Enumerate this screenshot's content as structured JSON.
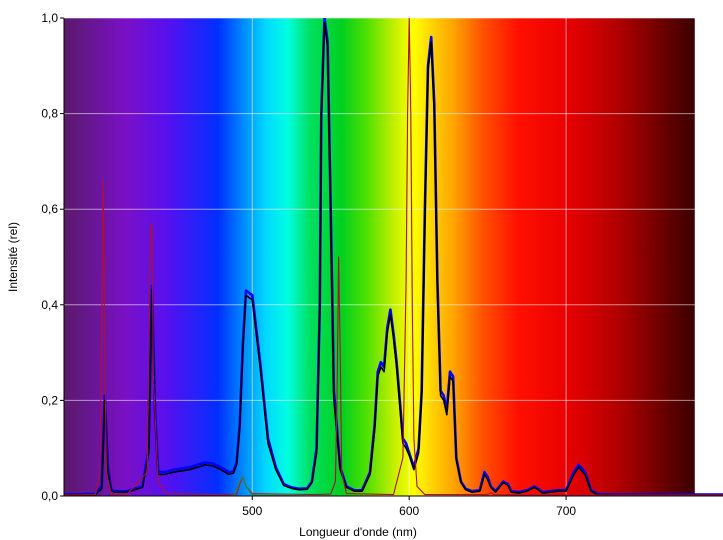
{
  "chart_data": {
    "type": "line",
    "title": "",
    "xlabel": "Longueur d'onde (nm)",
    "ylabel": "Intensité (rel)",
    "xlim": [
      380,
      1000
    ],
    "ylim": [
      0,
      1.0
    ],
    "x_ticks": [
      {
        "value": 500,
        "label": "500"
      },
      {
        "value": 600,
        "label": "600"
      },
      {
        "value": 700,
        "label": "700"
      }
    ],
    "y_ticks": [
      {
        "value": 0.0,
        "label": "0,0"
      },
      {
        "value": 0.2,
        "label": "0,2"
      },
      {
        "value": 0.4,
        "label": "0,4"
      },
      {
        "value": 0.6,
        "label": "0,6"
      },
      {
        "value": 0.8,
        "label": "0,8"
      },
      {
        "value": 1.0,
        "label": "1,0"
      }
    ],
    "grid": true,
    "background": "visible spectrum rainbow (violet to deep red) from 380 to 782 nm",
    "spectrum_range": [
      380,
      782
    ],
    "series": [
      {
        "color": "#0000ff",
        "x": [
          380,
          400,
          404,
          406,
          408,
          410,
          412,
          420,
          430,
          434,
          436,
          438,
          440,
          444,
          450,
          460,
          470,
          475,
          480,
          485,
          488,
          490,
          492,
          494,
          496,
          500,
          505,
          510,
          515,
          520,
          525,
          530,
          535,
          538,
          541,
          543,
          544,
          546,
          548,
          550,
          552,
          556,
          560,
          565,
          570,
          575,
          578,
          580,
          582,
          584,
          586,
          588,
          590,
          592,
          594,
          596,
          598,
          600,
          603,
          606,
          608,
          610,
          612,
          614,
          616,
          618,
          620,
          622,
          624,
          626,
          628,
          630,
          633,
          636,
          640,
          645,
          648,
          650,
          652,
          655,
          660,
          663,
          665,
          670,
          675,
          680,
          685,
          690,
          695,
          700,
          705,
          708,
          712,
          716,
          720,
          730,
          740,
          760,
          780,
          800,
          820,
          840,
          860,
          880,
          900,
          920,
          940,
          960,
          980,
          1000
        ],
        "y": [
          0.003,
          0.004,
          0.02,
          0.21,
          0.06,
          0.015,
          0.01,
          0.01,
          0.02,
          0.1,
          0.44,
          0.18,
          0.05,
          0.05,
          0.055,
          0.06,
          0.07,
          0.068,
          0.06,
          0.05,
          0.052,
          0.07,
          0.15,
          0.32,
          0.43,
          0.42,
          0.28,
          0.12,
          0.06,
          0.025,
          0.018,
          0.015,
          0.016,
          0.03,
          0.1,
          0.4,
          0.8,
          1.0,
          0.95,
          0.6,
          0.22,
          0.06,
          0.02,
          0.012,
          0.012,
          0.05,
          0.15,
          0.26,
          0.28,
          0.27,
          0.35,
          0.39,
          0.34,
          0.28,
          0.2,
          0.12,
          0.11,
          0.09,
          0.06,
          0.1,
          0.22,
          0.6,
          0.9,
          0.96,
          0.82,
          0.45,
          0.22,
          0.21,
          0.18,
          0.26,
          0.25,
          0.08,
          0.03,
          0.015,
          0.01,
          0.012,
          0.05,
          0.04,
          0.02,
          0.01,
          0.03,
          0.025,
          0.01,
          0.008,
          0.012,
          0.02,
          0.008,
          0.01,
          0.012,
          0.012,
          0.05,
          0.065,
          0.05,
          0.012,
          0.004,
          0.003,
          0.003,
          0.003,
          0.003,
          0.003,
          0.003,
          0.003,
          0.003,
          0.003,
          0.003,
          0.003,
          0.003,
          0.003,
          0.003,
          0.003
        ]
      },
      {
        "color": "#000000",
        "x": [
          380,
          400,
          404,
          406,
          408,
          410,
          412,
          420,
          430,
          434,
          436,
          438,
          440,
          444,
          450,
          460,
          470,
          475,
          480,
          485,
          488,
          490,
          492,
          494,
          496,
          500,
          505,
          510,
          515,
          520,
          525,
          530,
          535,
          538,
          541,
          543,
          544,
          546,
          548,
          550,
          552,
          556,
          560,
          565,
          570,
          575,
          578,
          580,
          582,
          584,
          586,
          588,
          590,
          592,
          594,
          596,
          598,
          600,
          603,
          606,
          608,
          610,
          612,
          614,
          616,
          618,
          620,
          622,
          624,
          626,
          628,
          630,
          633,
          636,
          640,
          645,
          648,
          650,
          652,
          655,
          660,
          663,
          665,
          670,
          675,
          680,
          685,
          690,
          695,
          700,
          705,
          708,
          712,
          716,
          720,
          730,
          740,
          760,
          780,
          800,
          820,
          840,
          860,
          880,
          900,
          920,
          940,
          960,
          980,
          1000
        ],
        "y": [
          0.002,
          0.003,
          0.015,
          0.2,
          0.05,
          0.012,
          0.008,
          0.008,
          0.018,
          0.09,
          0.43,
          0.17,
          0.045,
          0.045,
          0.05,
          0.055,
          0.065,
          0.063,
          0.055,
          0.045,
          0.048,
          0.065,
          0.14,
          0.31,
          0.42,
          0.41,
          0.27,
          0.11,
          0.055,
          0.022,
          0.016,
          0.013,
          0.014,
          0.028,
          0.09,
          0.39,
          0.79,
          0.99,
          0.94,
          0.58,
          0.2,
          0.055,
          0.018,
          0.01,
          0.01,
          0.045,
          0.14,
          0.25,
          0.27,
          0.26,
          0.34,
          0.38,
          0.33,
          0.27,
          0.19,
          0.11,
          0.1,
          0.085,
          0.055,
          0.09,
          0.21,
          0.58,
          0.89,
          0.95,
          0.8,
          0.43,
          0.21,
          0.2,
          0.17,
          0.25,
          0.24,
          0.075,
          0.028,
          0.013,
          0.008,
          0.01,
          0.045,
          0.035,
          0.018,
          0.008,
          0.028,
          0.022,
          0.008,
          0.006,
          0.01,
          0.018,
          0.006,
          0.008,
          0.01,
          0.01,
          0.045,
          0.06,
          0.045,
          0.01,
          0.003,
          0.002,
          0.002,
          0.002,
          0.002,
          0.002,
          0.002,
          0.002,
          0.002,
          0.002,
          0.002,
          0.002,
          0.002,
          0.002,
          0.002,
          0.002
        ]
      },
      {
        "color": "#b01030",
        "x": [
          380,
          400,
          403,
          404,
          405,
          406,
          407,
          410,
          420,
          433,
          434,
          435,
          436,
          437,
          440,
          445,
          480,
          490,
          492,
          494,
          496,
          500,
          540,
          550,
          553,
          554,
          555,
          556,
          557,
          560,
          590,
          596,
          598,
          599,
          600,
          601,
          602,
          603,
          605,
          610,
          640,
          650,
          652,
          654,
          700,
          1000
        ],
        "y": [
          0.002,
          0.003,
          0.05,
          0.35,
          0.66,
          0.3,
          0.05,
          0.004,
          0.003,
          0.05,
          0.3,
          0.55,
          0.57,
          0.25,
          0.03,
          0.005,
          0.003,
          0.004,
          0.025,
          0.04,
          0.02,
          0.005,
          0.003,
          0.004,
          0.03,
          0.2,
          0.5,
          0.3,
          0.05,
          0.005,
          0.003,
          0.08,
          0.45,
          0.8,
          1.0,
          0.8,
          0.4,
          0.12,
          0.02,
          0.003,
          0.003,
          0.003,
          0.007,
          0.003,
          0.002,
          0.002
        ]
      },
      {
        "color": "#2a8a2a",
        "x": [
          380,
          488,
          490,
          492,
          494,
          496,
          500,
          540,
          1000
        ],
        "y": [
          0.0,
          0.0,
          0.012,
          0.03,
          0.04,
          0.02,
          0.002,
          0.0,
          0.0
        ]
      }
    ]
  }
}
